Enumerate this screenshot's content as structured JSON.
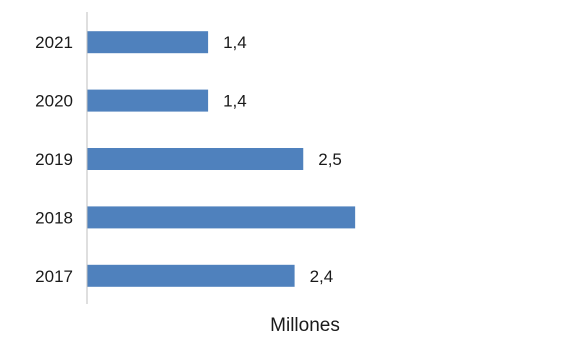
{
  "chart_data": {
    "type": "bar",
    "orientation": "horizontal",
    "categories": [
      "2021",
      "2020",
      "2019",
      "2018",
      "2017"
    ],
    "values": [
      1.4,
      1.4,
      2.5,
      3.1,
      2.4
    ],
    "data_labels": [
      "1,4",
      "1,4",
      "2,5",
      "",
      "2,4"
    ],
    "title": "",
    "xlabel": "Millones",
    "ylabel": "",
    "xlim": [
      0,
      5.5
    ],
    "grid": false,
    "legend": "none",
    "bar_color": "#4f81bd",
    "axis_color": "#bfbfbf"
  }
}
